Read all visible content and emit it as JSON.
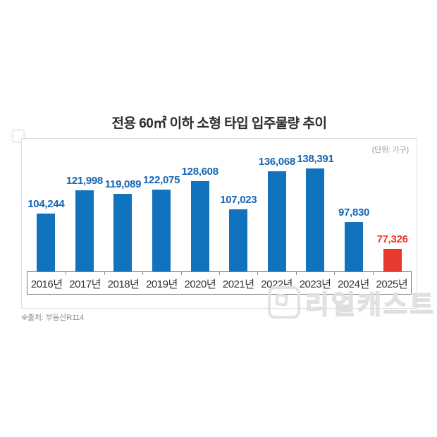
{
  "title": "전용 60㎡ 이하 소형 타입 입주물량 추이",
  "unit_note": "(단위: 가구)",
  "source": "※출처: 부동산R114",
  "watermark_text": "리얼캐스트",
  "colors": {
    "bar_blue": "#1173BE",
    "bar_red": "#E8392F",
    "label_blue": "#1565B5",
    "label_red": "#E8392F"
  },
  "chart_data": {
    "type": "bar",
    "title": "전용 60㎡ 이하 소형 타입 입주물량 추이",
    "categories": [
      "2016년",
      "2017년",
      "2018년",
      "2019년",
      "2020년",
      "2021년",
      "2022년",
      "2023년",
      "2024년",
      "2025년"
    ],
    "values": [
      104244,
      121998,
      119089,
      122075,
      128608,
      107023,
      136068,
      138391,
      97830,
      77326
    ],
    "labels": [
      "104,244",
      "121,998",
      "119,089",
      "122,075",
      "128,608",
      "107,023",
      "136,068",
      "138,391",
      "97,830",
      "77,326"
    ],
    "highlight_index": 9,
    "xlabel": "",
    "ylabel": "가구",
    "ylim": [
      60000,
      140000
    ],
    "grid": false,
    "legend": false,
    "data_labels": true
  }
}
